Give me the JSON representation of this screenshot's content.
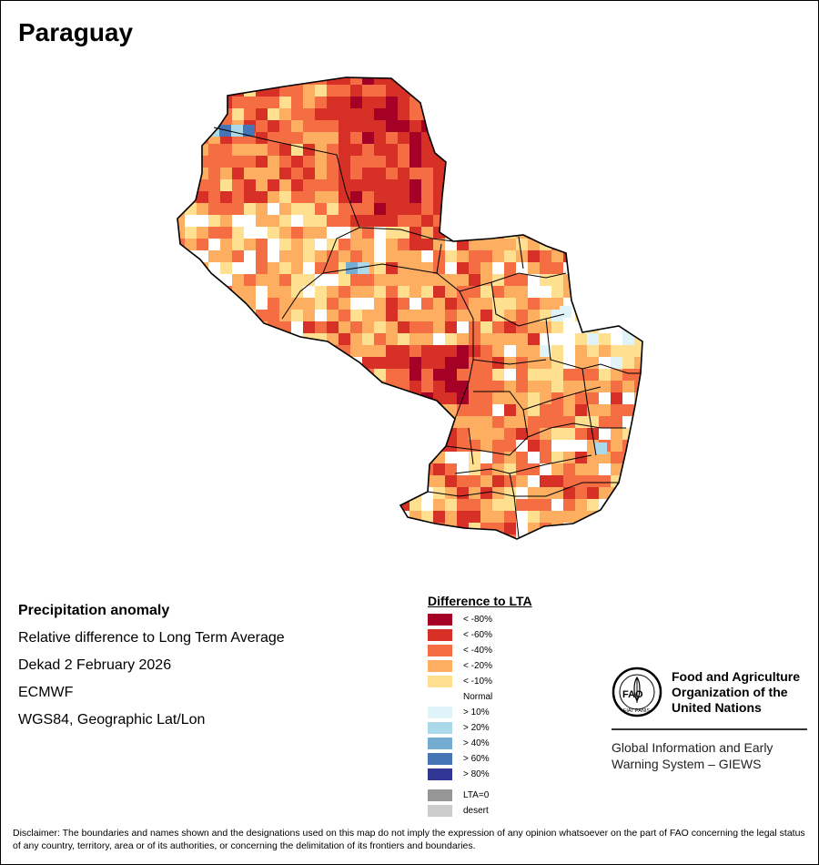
{
  "title": "Paraguay",
  "info": {
    "line1": "Precipitation anomaly",
    "line2": "Relative difference to Long Term Average",
    "line3": "Dekad 2 February 2026",
    "line4": "ECMWF",
    "line5": "WGS84, Geographic Lat/Lon"
  },
  "legend": {
    "title": "Difference to LTA",
    "items": [
      {
        "label": "< -80%",
        "color": "#a50026"
      },
      {
        "label": "< -60%",
        "color": "#d73027"
      },
      {
        "label": "< -40%",
        "color": "#f46d43"
      },
      {
        "label": "< -20%",
        "color": "#fdae61"
      },
      {
        "label": "< -10%",
        "color": "#fee090"
      },
      {
        "label": "Normal",
        "color": "#ffffff"
      },
      {
        "label": "> 10%",
        "color": "#e0f3f8"
      },
      {
        "label": "> 20%",
        "color": "#abd9e9"
      },
      {
        "label": "> 40%",
        "color": "#74add1"
      },
      {
        "label": "> 60%",
        "color": "#4575b4"
      },
      {
        "label": "> 80%",
        "color": "#313695"
      }
    ],
    "extra": [
      {
        "label": "LTA=0",
        "color": "#969696"
      },
      {
        "label": "desert",
        "color": "#cccccc"
      }
    ]
  },
  "fao": {
    "logo_text": "FAO",
    "logo_motto": "FIAT PANIS",
    "name_line1": "Food and Agriculture",
    "name_line2": "Organization of the",
    "name_line3": "United Nations",
    "giews_line1": "Global Information and Early",
    "giews_line2": "Warning System – GIEWS"
  },
  "disclaimer": "Disclaimer: The boundaries and names shown and the designations used on this map do not imply the expression of any opinion whatsoever on the part of FAO concerning the legal status of any country, territory, area or of its authorities, or concerning the delimitation of its frontiers and boundaries."
}
